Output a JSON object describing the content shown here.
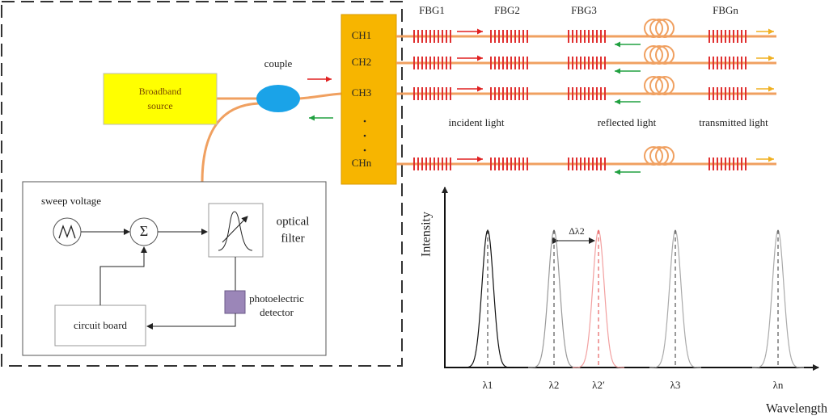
{
  "labels": {
    "fbg": [
      "FBG1",
      "FBG2",
      "FBG3",
      "FBGn"
    ],
    "channels": [
      "CH1",
      "CH2",
      "CH3",
      "CHn"
    ],
    "couple": "couple",
    "broadband_source": [
      "Broadband",
      "source"
    ],
    "light": [
      "incident light",
      "reflected light",
      "transmitted light"
    ]
  },
  "control": {
    "sweep_voltage": "sweep voltage",
    "sum": "Σ",
    "optical_filter": [
      "optical",
      "filter"
    ],
    "photoelectric_detector": [
      "photoelectric",
      "detector"
    ],
    "circuit_board": "circuit board"
  },
  "spectrum": {
    "y_label": "Intensity",
    "x_label": "Wavelength",
    "shift": "Δλ2",
    "peaks": [
      "λ1",
      "λ2",
      "λ2′",
      "λ3",
      "λn"
    ]
  }
}
